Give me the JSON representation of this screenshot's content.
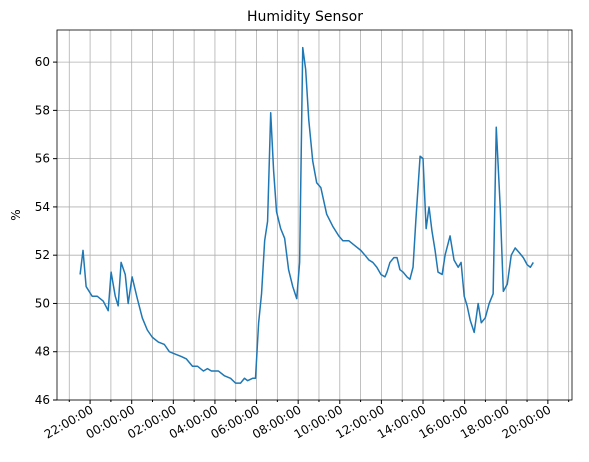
{
  "chart_data": {
    "type": "line",
    "title": "Humidity Sensor",
    "y_label": "%",
    "x": [
      21.52,
      21.66,
      21.81,
      22.1,
      22.34,
      22.63,
      22.87,
      23.01,
      23.21,
      23.35,
      23.49,
      23.69,
      23.83,
      24.02,
      24.27,
      24.51,
      24.75,
      24.99,
      25.28,
      25.57,
      25.81,
      26.1,
      26.39,
      26.63,
      26.92,
      27.16,
      27.45,
      27.64,
      27.83,
      28.17,
      28.46,
      28.75,
      28.99,
      29.23,
      29.42,
      29.57,
      29.81,
      29.95,
      30.1,
      30.24,
      30.39,
      30.53,
      30.68,
      30.82,
      30.96,
      31.16,
      31.35,
      31.54,
      31.74,
      31.93,
      32.07,
      32.22,
      32.36,
      32.51,
      32.7,
      32.89,
      33.09,
      33.37,
      33.66,
      33.95,
      34.15,
      34.43,
      34.72,
      35.01,
      35.21,
      35.4,
      35.59,
      35.78,
      35.98,
      36.17,
      36.27,
      36.41,
      36.6,
      36.75,
      36.89,
      37.04,
      37.23,
      37.37,
      37.52,
      37.66,
      37.86,
      38.0,
      38.15,
      38.29,
      38.43,
      38.58,
      38.72,
      38.92,
      39.06,
      39.3,
      39.49,
      39.69,
      39.83,
      39.98,
      40.12,
      40.27,
      40.46,
      40.65,
      40.8,
      40.99,
      41.18,
      41.37,
      41.52,
      41.71,
      41.86,
      42.05,
      42.24,
      42.43,
      42.63,
      42.82,
      43.01,
      43.16,
      43.3
    ],
    "series": [
      {
        "name": "Humidity",
        "color": "#1f77b4",
        "values": [
          51.2,
          52.2,
          50.7,
          50.3,
          50.3,
          50.1,
          49.7,
          51.3,
          50.3,
          49.9,
          51.7,
          51.2,
          50.0,
          51.1,
          50.2,
          49.4,
          48.9,
          48.6,
          48.4,
          48.3,
          48.0,
          47.9,
          47.8,
          47.7,
          47.4,
          47.4,
          47.2,
          47.3,
          47.2,
          47.2,
          47.0,
          46.9,
          46.7,
          46.7,
          46.9,
          46.8,
          46.9,
          46.9,
          49.2,
          50.4,
          52.6,
          53.4,
          57.9,
          55.5,
          53.8,
          53.1,
          52.7,
          51.4,
          50.7,
          50.2,
          51.7,
          60.6,
          59.7,
          57.6,
          55.9,
          55.0,
          54.8,
          53.7,
          53.2,
          52.8,
          52.6,
          52.6,
          52.4,
          52.2,
          52.0,
          51.8,
          51.7,
          51.5,
          51.2,
          51.1,
          51.3,
          51.7,
          51.9,
          51.9,
          51.4,
          51.3,
          51.1,
          51.0,
          51.5,
          53.5,
          56.1,
          56.0,
          53.1,
          54.0,
          53.0,
          52.2,
          51.3,
          51.2,
          52.0,
          52.8,
          51.8,
          51.5,
          51.7,
          50.3,
          49.9,
          49.3,
          48.8,
          50.0,
          49.2,
          49.4,
          50.0,
          50.4,
          57.3,
          54.0,
          50.5,
          50.8,
          52.0,
          52.3,
          52.1,
          51.9,
          51.6,
          51.5,
          51.7
        ]
      }
    ],
    "xlim": [
      20.41,
      45.16
    ],
    "ylim": [
      46,
      61.33
    ],
    "xticks": [
      {
        "value": 22,
        "label": "22:00:00"
      },
      {
        "value": 24,
        "label": "00:00:00"
      },
      {
        "value": 26,
        "label": "02:00:00"
      },
      {
        "value": 28,
        "label": "04:00:00"
      },
      {
        "value": 30,
        "label": "06:00:00"
      },
      {
        "value": 32,
        "label": "08:00:00"
      },
      {
        "value": 34,
        "label": "10:00:00"
      },
      {
        "value": 36,
        "label": "12:00:00"
      },
      {
        "value": 38,
        "label": "14:00:00"
      },
      {
        "value": 40,
        "label": "16:00:00"
      },
      {
        "value": 42,
        "label": "18:00:00"
      },
      {
        "value": 44,
        "label": "20:00:00"
      }
    ],
    "xminorticks": [
      21,
      23,
      25,
      27,
      29,
      31,
      33,
      35,
      37,
      39,
      41,
      43,
      45
    ],
    "yticks": [
      46,
      48,
      50,
      52,
      54,
      56,
      58,
      60
    ],
    "grid": true
  }
}
